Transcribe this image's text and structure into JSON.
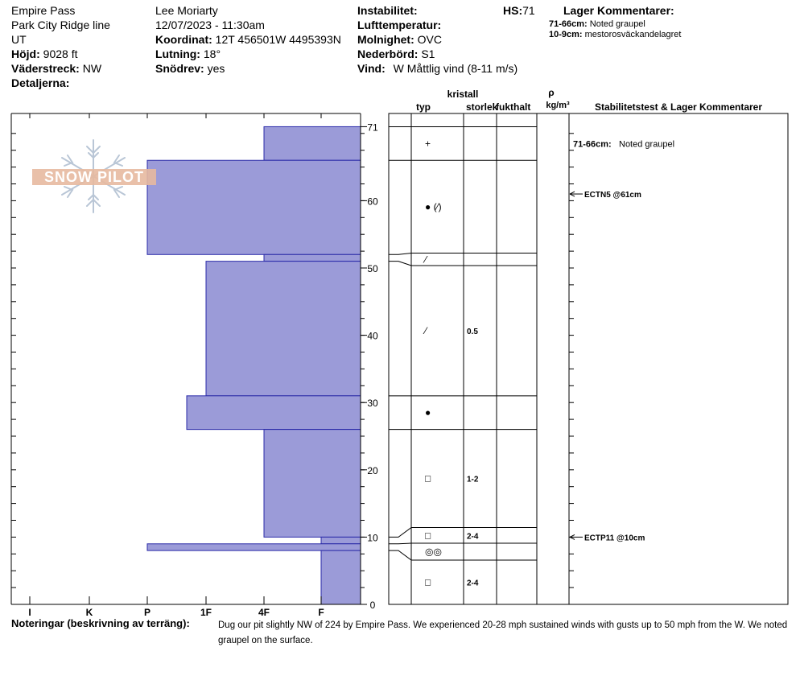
{
  "header": {
    "col1": {
      "location": "Empire Pass",
      "sublocation": "Park City Ridge line",
      "state": "UT",
      "elevation_label": "Höjd:",
      "elevation_value": "9028 ft",
      "aspect_label": "Väderstreck:",
      "aspect_value": "NW",
      "details_label": "Detaljerna:"
    },
    "col2": {
      "observer": "Lee Moriarty",
      "datetime": "12/07/2023 - 11:30am",
      "coord_label": "Koordinat:",
      "coord_value": "12T 456501W 4495393N",
      "slope_label": "Lutning:",
      "slope_value": "18°",
      "drift_label": "Snödrev:",
      "drift_value": "yes"
    },
    "col3": {
      "instability_label": "Instabilitet:",
      "hs_label": "HS:",
      "hs_value": "71",
      "airtemp_label": "Lufttemperatur:",
      "sky_label": "Molnighet:",
      "sky_value": "OVC",
      "precip_label": "Nederbörd:",
      "precip_value": "S1",
      "wind_label": "Vind:",
      "wind_value": "W Måttlig vind (8-11 m/s)"
    },
    "layer_comments": {
      "title": "Lager Kommentarer:",
      "items": [
        {
          "range": "71-66cm:",
          "text": "Noted graupel"
        },
        {
          "range": "10-9cm:",
          "text": "mestorosväckandelagret"
        }
      ]
    }
  },
  "logo_text": "SNOW PILOT",
  "columns": {
    "crystal": "kristall",
    "type": "typ",
    "size": "storlek",
    "moisture": "fukthalt",
    "rho": "ρ",
    "density_unit": "kg/m³",
    "stability": "Stabilitetstest & Lager Kommentarer"
  },
  "chart_data": {
    "type": "bar",
    "orientation": "horizontal",
    "y_axis": "height (cm)",
    "ylim": [
      0,
      73
    ],
    "yticks": [
      0,
      10,
      20,
      30,
      40,
      50,
      60,
      71
    ],
    "hardness_scale": [
      "F",
      "4F",
      "1F",
      "P",
      "K",
      "I"
    ],
    "hardness_ticks": [
      "I",
      "K",
      "P",
      "1F",
      "4F",
      "F"
    ],
    "layers": [
      {
        "top": 71,
        "bottom": 66,
        "hardness": "4F",
        "hardness_index": 2,
        "grain": "graupel",
        "grain_symbol": "+",
        "size": ""
      },
      {
        "top": 66,
        "bottom": 52,
        "hardness": "P",
        "hardness_index": 4,
        "grain": "rounded / faceted",
        "grain_symbol": "● (⁄)",
        "size": ""
      },
      {
        "top": 52,
        "bottom": 51,
        "hardness": "4F",
        "hardness_index": 2,
        "grain": "faceted",
        "grain_symbol": "⁄",
        "size": ""
      },
      {
        "top": 51,
        "bottom": 31,
        "hardness": "1F-",
        "hardness_index": 3,
        "grain": "faceted",
        "grain_symbol": "⁄",
        "size": "0.5"
      },
      {
        "top": 31,
        "bottom": 26,
        "hardness": "1F+",
        "hardness_index": 3.33,
        "grain": "rounded",
        "grain_symbol": "●",
        "size": ""
      },
      {
        "top": 26,
        "bottom": 10,
        "hardness": "4F",
        "hardness_index": 2,
        "grain": "facets",
        "grain_symbol": "□",
        "size": "1-2"
      },
      {
        "top": 10,
        "bottom": 9,
        "hardness": "F",
        "hardness_index": 1,
        "grain": "facets",
        "grain_symbol": "□",
        "size": "2-4"
      },
      {
        "top": 9,
        "bottom": 8,
        "hardness": "P",
        "hardness_index": 4,
        "grain": "melt-freeze crust",
        "grain_symbol": "◎◎",
        "size": ""
      },
      {
        "top": 8,
        "bottom": 0,
        "hardness": "F",
        "hardness_index": 1,
        "grain": "facets",
        "grain_symbol": "□",
        "size": "2-4"
      }
    ],
    "layer_comment": {
      "range": "71-66cm:",
      "text": "Noted graupel",
      "height": 68.5
    },
    "stability_tests": [
      {
        "label": "ECTN5 @61cm",
        "height": 61
      },
      {
        "label": "ECTP11 @10cm",
        "height": 10
      }
    ]
  },
  "notes": {
    "label": "Noteringar (beskrivning av terräng):",
    "text": "Dug our pit slightly NW of 224 by Empire Pass. We experienced 20-28 mph sustained winds with gusts up to 50 mph from the W. We noted graupel on the surface."
  }
}
